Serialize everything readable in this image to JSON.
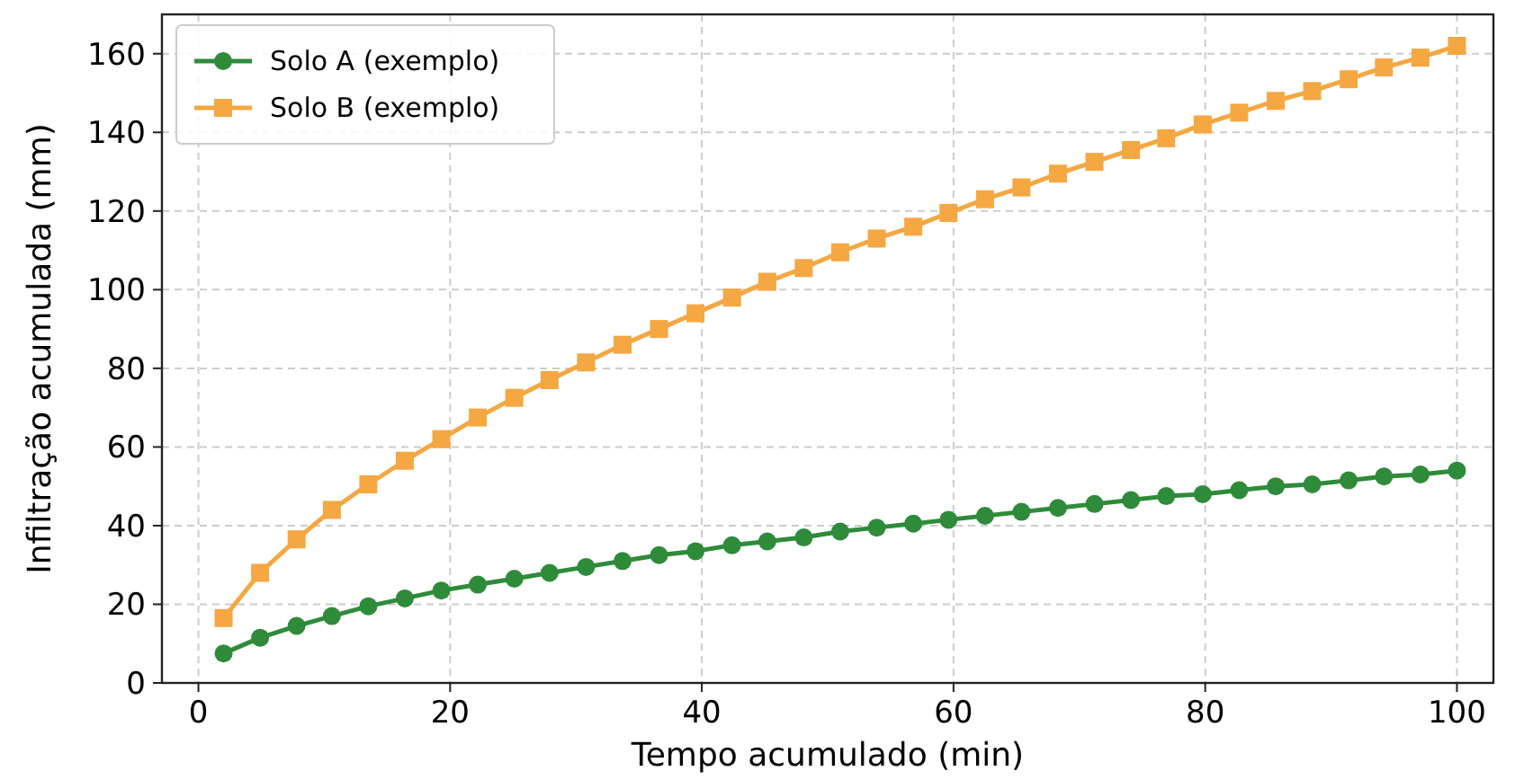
{
  "chart_data": {
    "type": "line",
    "xlabel": "Tempo acumulado (min)",
    "ylabel": "Infiltração acumulada (mm)",
    "x": [
      2,
      4.9,
      7.8,
      10.6,
      13.5,
      16.4,
      19.3,
      22.2,
      25.1,
      27.9,
      30.8,
      33.7,
      36.6,
      39.5,
      42.4,
      45.2,
      48.1,
      51,
      53.9,
      56.8,
      59.6,
      62.5,
      65.4,
      68.3,
      71.2,
      74.1,
      76.9,
      79.8,
      82.7,
      85.6,
      88.5,
      91.4,
      94.2,
      97.1,
      100
    ],
    "series": [
      {
        "name": "Solo A (exemplo)",
        "color": "#2e8b3a",
        "marker": "circle",
        "values": [
          7.5,
          11.5,
          14.5,
          17,
          19.5,
          21.5,
          23.5,
          25,
          26.5,
          28,
          29.5,
          31,
          32.5,
          33.5,
          35,
          36,
          37,
          38.5,
          39.5,
          40.5,
          41.5,
          42.5,
          43.5,
          44.5,
          45.5,
          46.5,
          47.5,
          48,
          49,
          50,
          50.5,
          51.5,
          52.5,
          53,
          54
        ]
      },
      {
        "name": "Solo B (exemplo)",
        "color": "#f5a742",
        "marker": "square",
        "values": [
          16.5,
          28,
          36.5,
          44,
          50.5,
          56.5,
          62,
          67.5,
          72.5,
          77,
          81.5,
          86,
          90,
          94,
          98,
          102,
          105.5,
          109.5,
          113,
          116,
          119.5,
          123,
          126,
          129.5,
          132.5,
          135.5,
          138.5,
          142,
          145,
          148,
          150.5,
          153.5,
          156.5,
          159,
          162
        ]
      }
    ],
    "xlim": [
      -2.9,
      102.9
    ],
    "xticks": [
      0,
      20,
      40,
      60,
      80,
      100
    ],
    "ylim": [
      0,
      170
    ],
    "yticks": [
      0,
      20,
      40,
      60,
      80,
      100,
      120,
      140,
      160
    ],
    "grid": true,
    "legend": "top left",
    "line_style": "solid"
  }
}
